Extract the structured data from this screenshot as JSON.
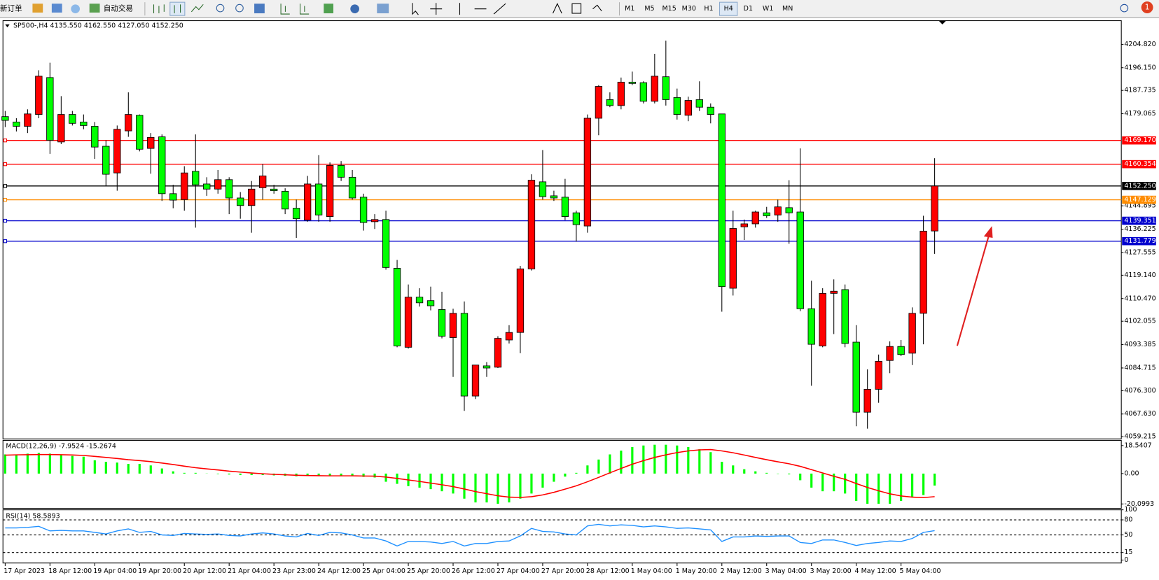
{
  "toolbar": {
    "new_order": "新订单",
    "auto_trading": "自动交易",
    "timeframes": [
      "M1",
      "M5",
      "M15",
      "M30",
      "H1",
      "H4",
      "D1",
      "W1",
      "MN"
    ],
    "active_timeframe": "H4",
    "notifications": "1"
  },
  "chart_data": [
    {
      "type": "candlestick",
      "title": "SP500-,H4  4135.550 4162.550 4127.050 4152.250",
      "categories": [
        "17 Apr 2023",
        null,
        null,
        null,
        "18 Apr 12:00",
        null,
        null,
        null,
        "19 Apr 04:00",
        null,
        null,
        null,
        "19 Apr 20:00",
        null,
        null,
        null,
        "20 Apr 12:00",
        null,
        null,
        null,
        "21 Apr 04:00",
        null,
        null,
        null,
        "23 Apr 23:00",
        null,
        null,
        null,
        "24 Apr 12:00",
        null,
        null,
        null,
        "25 Apr 04:00",
        null,
        null,
        null,
        "25 Apr 20:00",
        null,
        null,
        null,
        "26 Apr 12:00",
        null,
        null,
        null,
        "27 Apr 04:00",
        null,
        null,
        null,
        "27 Apr 20:00",
        null,
        null,
        null,
        "28 Apr 12:00",
        null,
        null,
        null,
        "1 May 04:00",
        null,
        null,
        null,
        "1 May 20:00",
        null,
        null,
        null,
        "2 May 12:00",
        null,
        null,
        null,
        "3 May 04:00",
        null,
        null,
        null,
        "3 May 20:00",
        null,
        null,
        null,
        "4 May 12:00",
        null,
        null,
        null,
        "5 May 04:00",
        null,
        null,
        null
      ],
      "open": [
        4178.0,
        4176.0,
        4174.4,
        4178.8,
        4192.5,
        4168.6,
        4178.8,
        4176.0,
        4174.4,
        4167.0,
        4157.1,
        4172.7,
        4178.5,
        4166.2,
        4170.5,
        4149.4,
        4147.2,
        4157.7,
        4153.0,
        4151.1,
        4154.6,
        4147.8,
        4145.0,
        4151.6,
        4151.1,
        4150.3,
        4144.0,
        4139.6,
        4153.0,
        4140.9,
        4159.9,
        4155.5,
        4148.1,
        4139.0,
        4139.8,
        4121.7,
        4092.4,
        4111.0,
        4109.7,
        4106.4,
        4096.0,
        4105.0,
        4074.3,
        4085.5,
        4085.0,
        4095.1,
        4097.9,
        4121.5,
        4153.8,
        4148.6,
        4148.1,
        4142.3,
        4137.4,
        4177.4,
        4184.3,
        4182.1,
        4190.8,
        4190.6,
        4183.7,
        4192.8,
        4185.1,
        4178.5,
        4184.3,
        4181.5,
        4179.0,
        4114.3,
        4137.1,
        4138.2,
        4142.3,
        4141.5,
        4144.2,
        4142.6,
        4106.7,
        4092.9,
        4112.4,
        4113.8,
        4094.3,
        4068.3,
        4076.8,
        4087.5,
        4092.7,
        4090.2,
        4105.0,
        4135.55
      ],
      "high": [
        4180.1,
        4177.4,
        4180.7,
        4195.2,
        4198.0,
        4185.6,
        4180.1,
        4178.8,
        4176.0,
        4169.2,
        4174.7,
        4187.0,
        4178.8,
        4171.9,
        4171.4,
        4152.7,
        4159.6,
        4171.4,
        4155.5,
        4158.2,
        4155.5,
        4150.0,
        4154.1,
        4160.4,
        4152.7,
        4151.4,
        4147.2,
        4156.0,
        4163.7,
        4161.0,
        4161.5,
        4158.2,
        4149.4,
        4141.8,
        4143.1,
        4124.8,
        4115.7,
        4114.3,
        4114.9,
        4113.0,
        4106.7,
        4109.4,
        4085.8,
        4086.9,
        4096.5,
        4100.6,
        4122.6,
        4156.6,
        4165.6,
        4150.5,
        4154.9,
        4143.1,
        4178.8,
        4189.7,
        4187.0,
        4192.5,
        4194.7,
        4191.1,
        4201.3,
        4206.2,
        4188.4,
        4185.4,
        4191.1,
        4182.9,
        4179.0,
        4143.1,
        4139.8,
        4143.1,
        4144.5,
        4147.2,
        4154.4,
        4166.2,
        4117.1,
        4114.3,
        4117.6,
        4115.7,
        4100.6,
        4084.2,
        4089.7,
        4094.6,
        4095.1,
        4107.2,
        4141.2,
        4162.55
      ],
      "low": [
        4174.1,
        4172.5,
        4171.9,
        4177.4,
        4164.2,
        4167.8,
        4174.7,
        4173.3,
        4162.3,
        4152.2,
        4150.5,
        4170.5,
        4165.1,
        4156.8,
        4146.7,
        4144.0,
        4143.1,
        4136.8,
        4148.6,
        4149.4,
        4141.8,
        4140.1,
        4134.9,
        4147.2,
        4149.4,
        4141.8,
        4133.0,
        4139.0,
        4139.0,
        4139.0,
        4154.1,
        4147.2,
        4135.7,
        4136.3,
        4121.2,
        4092.4,
        4091.9,
        4107.5,
        4106.1,
        4095.7,
        4081.4,
        4068.8,
        4073.2,
        4081.4,
        4084.7,
        4093.8,
        4090.2,
        4120.9,
        4147.2,
        4146.7,
        4139.6,
        4131.6,
        4134.9,
        4171.1,
        4181.5,
        4180.7,
        4189.7,
        4182.9,
        4182.9,
        4182.1,
        4176.9,
        4176.3,
        4180.1,
        4175.5,
        4105.6,
        4111.6,
        4132.2,
        4136.8,
        4140.4,
        4139.0,
        4130.8,
        4105.8,
        4078.1,
        4092.4,
        4097.3,
        4092.4,
        4063.1,
        4062.2,
        4071.8,
        4082.8,
        4089.1,
        4085.8,
        4093.5,
        4127.05
      ],
      "close": [
        4176.6,
        4174.4,
        4179.0,
        4193.0,
        4169.2,
        4178.8,
        4175.5,
        4174.7,
        4166.7,
        4156.6,
        4173.3,
        4178.8,
        4165.9,
        4170.3,
        4149.4,
        4147.0,
        4157.1,
        4152.7,
        4151.1,
        4154.6,
        4147.8,
        4145.0,
        4151.1,
        4156.0,
        4150.5,
        4143.7,
        4140.1,
        4153.0,
        4141.5,
        4159.9,
        4155.5,
        4147.8,
        4138.7,
        4139.8,
        4122.0,
        4092.9,
        4111.0,
        4108.9,
        4107.8,
        4096.5,
        4105.0,
        4074.3,
        4085.8,
        4084.7,
        4095.7,
        4097.9,
        4121.5,
        4154.4,
        4148.3,
        4147.8,
        4140.9,
        4137.9,
        4177.4,
        4189.2,
        4182.1,
        4190.8,
        4190.3,
        4183.7,
        4193.0,
        4184.3,
        4178.8,
        4184.0,
        4181.5,
        4178.8,
        4114.9,
        4136.5,
        4138.2,
        4142.6,
        4141.2,
        4144.5,
        4142.3,
        4106.7,
        4093.5,
        4112.4,
        4113.2,
        4093.8,
        4068.3,
        4076.8,
        4087.2,
        4092.7,
        4089.7,
        4105.0,
        4135.5,
        4152.25
      ],
      "up_color": "#ff0000",
      "down_color": "#00ff00",
      "ylim": [
        4058.4,
        4213.6
      ],
      "yticks": [
        {
          "value": 4204.82,
          "label": "4204.820"
        },
        {
          "value": 4196.15,
          "label": "4196.150"
        },
        {
          "value": 4187.735,
          "label": "4187.735"
        },
        {
          "value": 4179.065,
          "label": "4179.065"
        },
        {
          "value": 4144.895,
          "label": "4144.895"
        },
        {
          "value": 4136.225,
          "label": "4136.225"
        },
        {
          "value": 4127.555,
          "label": "4127.555"
        },
        {
          "value": 4119.14,
          "label": "4119.140"
        },
        {
          "value": 4110.47,
          "label": "4110.470"
        },
        {
          "value": 4102.055,
          "label": "4102.055"
        },
        {
          "value": 4093.385,
          "label": "4093.385"
        },
        {
          "value": 4084.715,
          "label": "4084.715"
        },
        {
          "value": 4076.3,
          "label": "4076.300"
        },
        {
          "value": 4067.63,
          "label": "4067.630"
        },
        {
          "value": 4059.215,
          "label": "4059.215"
        }
      ],
      "levels": [
        {
          "value": 4169.17,
          "label": "4169.170",
          "color": "#ff0000"
        },
        {
          "value": 4160.354,
          "label": "4160.354",
          "color": "#ff0000"
        },
        {
          "value": 4152.25,
          "label": "4152.250",
          "color": "#000000"
        },
        {
          "value": 4147.129,
          "label": "4147.129",
          "color": "#ff8c00"
        },
        {
          "value": 4139.351,
          "label": "4139.351",
          "color": "#0000cd"
        },
        {
          "value": 4131.779,
          "label": "4131.779",
          "color": "#0000cd"
        }
      ]
    },
    {
      "type": "macd",
      "title": "MACD(12,26,9) -7.9524 -15.2674",
      "values": [
        12.7,
        12.7,
        13.2,
        13.7,
        13.2,
        12.2,
        11.7,
        11.2,
        8.8,
        7.8,
        7.3,
        6.4,
        6.4,
        5.4,
        3.4,
        1.5,
        0.5,
        0.5,
        0.1,
        -0.3,
        -0.6,
        -0.9,
        -1.0,
        -1.0,
        -1.2,
        -1.5,
        -1.8,
        -1.6,
        -1.7,
        -1.4,
        -1.3,
        -1.6,
        -2.2,
        -2.6,
        -5.4,
        -6.8,
        -8.3,
        -9.3,
        -10.3,
        -11.7,
        -13.2,
        -16.6,
        -19.1,
        -19.1,
        -20.0,
        -19.1,
        -16.6,
        -13.2,
        -9.3,
        -5.4,
        -2.0,
        0.5,
        5.4,
        9.3,
        12.7,
        15.2,
        17.6,
        18.6,
        19.1,
        19.1,
        18.6,
        17.6,
        16.1,
        14.2,
        7.8,
        5.4,
        2.9,
        1.5,
        0.5,
        -0.2,
        -0.5,
        -4.4,
        -9.3,
        -11.7,
        -11.7,
        -13.2,
        -18.1,
        -20.0,
        -20.0,
        -20.0,
        -18.1,
        -15.6,
        -14.2,
        -7.9524
      ],
      "color": "#00ff00",
      "signal": [
        12.2,
        12.4,
        12.5,
        12.6,
        12.6,
        12.5,
        12.3,
        12.0,
        11.4,
        10.7,
        10.0,
        9.2,
        8.6,
        7.9,
        7.0,
        6.0,
        4.9,
        3.9,
        3.1,
        2.4,
        1.6,
        1.0,
        0.4,
        -0.1,
        -0.5,
        -0.8,
        -1.1,
        -1.3,
        -1.4,
        -1.5,
        -1.5,
        -1.5,
        -1.6,
        -1.7,
        -2.3,
        -3.2,
        -4.2,
        -5.2,
        -6.3,
        -7.4,
        -8.6,
        -10.2,
        -11.9,
        -13.3,
        -14.7,
        -15.6,
        -15.8,
        -15.3,
        -14.1,
        -12.4,
        -10.3,
        -8.1,
        -5.4,
        -2.5,
        0.5,
        3.4,
        6.2,
        8.6,
        10.7,
        12.4,
        13.9,
        15.0,
        15.7,
        15.9,
        15.0,
        13.8,
        12.3,
        10.7,
        9.2,
        7.8,
        6.5,
        4.8,
        2.6,
        0.4,
        -1.8,
        -3.8,
        -6.6,
        -9.2,
        -11.4,
        -13.4,
        -14.8,
        -15.6,
        -15.9,
        -15.2674
      ],
      "signal_color": "#ff0000",
      "ylim": [
        -23,
        22
      ],
      "yticks": [
        18.5407,
        {
          "value": 0,
          "label": "0.00"
        },
        -20.0993
      ]
    },
    {
      "type": "line",
      "title": "RSI(14) 58.5893",
      "values": [
        64,
        64,
        65,
        67,
        58,
        59,
        58,
        58,
        55,
        52,
        58,
        62,
        55,
        57,
        50,
        49,
        53,
        52,
        51,
        52,
        49,
        48,
        52,
        54,
        52,
        48,
        46,
        53,
        49,
        55,
        54,
        50,
        44,
        44,
        38,
        28,
        37,
        37,
        36,
        33,
        37,
        28,
        33,
        33,
        37,
        38,
        48,
        63,
        57,
        56,
        52,
        50,
        68,
        71,
        68,
        70,
        69,
        66,
        68,
        66,
        63,
        64,
        62,
        60,
        37,
        46,
        46,
        48,
        47,
        48,
        48,
        35,
        33,
        40,
        40,
        35,
        29,
        33,
        35,
        38,
        37,
        43,
        55,
        58.5893
      ],
      "color": "#1e90ff",
      "ylim": [
        0,
        100
      ],
      "yticks": [
        100,
        80,
        50,
        15,
        0
      ],
      "levels": [
        80,
        50,
        15
      ]
    }
  ]
}
